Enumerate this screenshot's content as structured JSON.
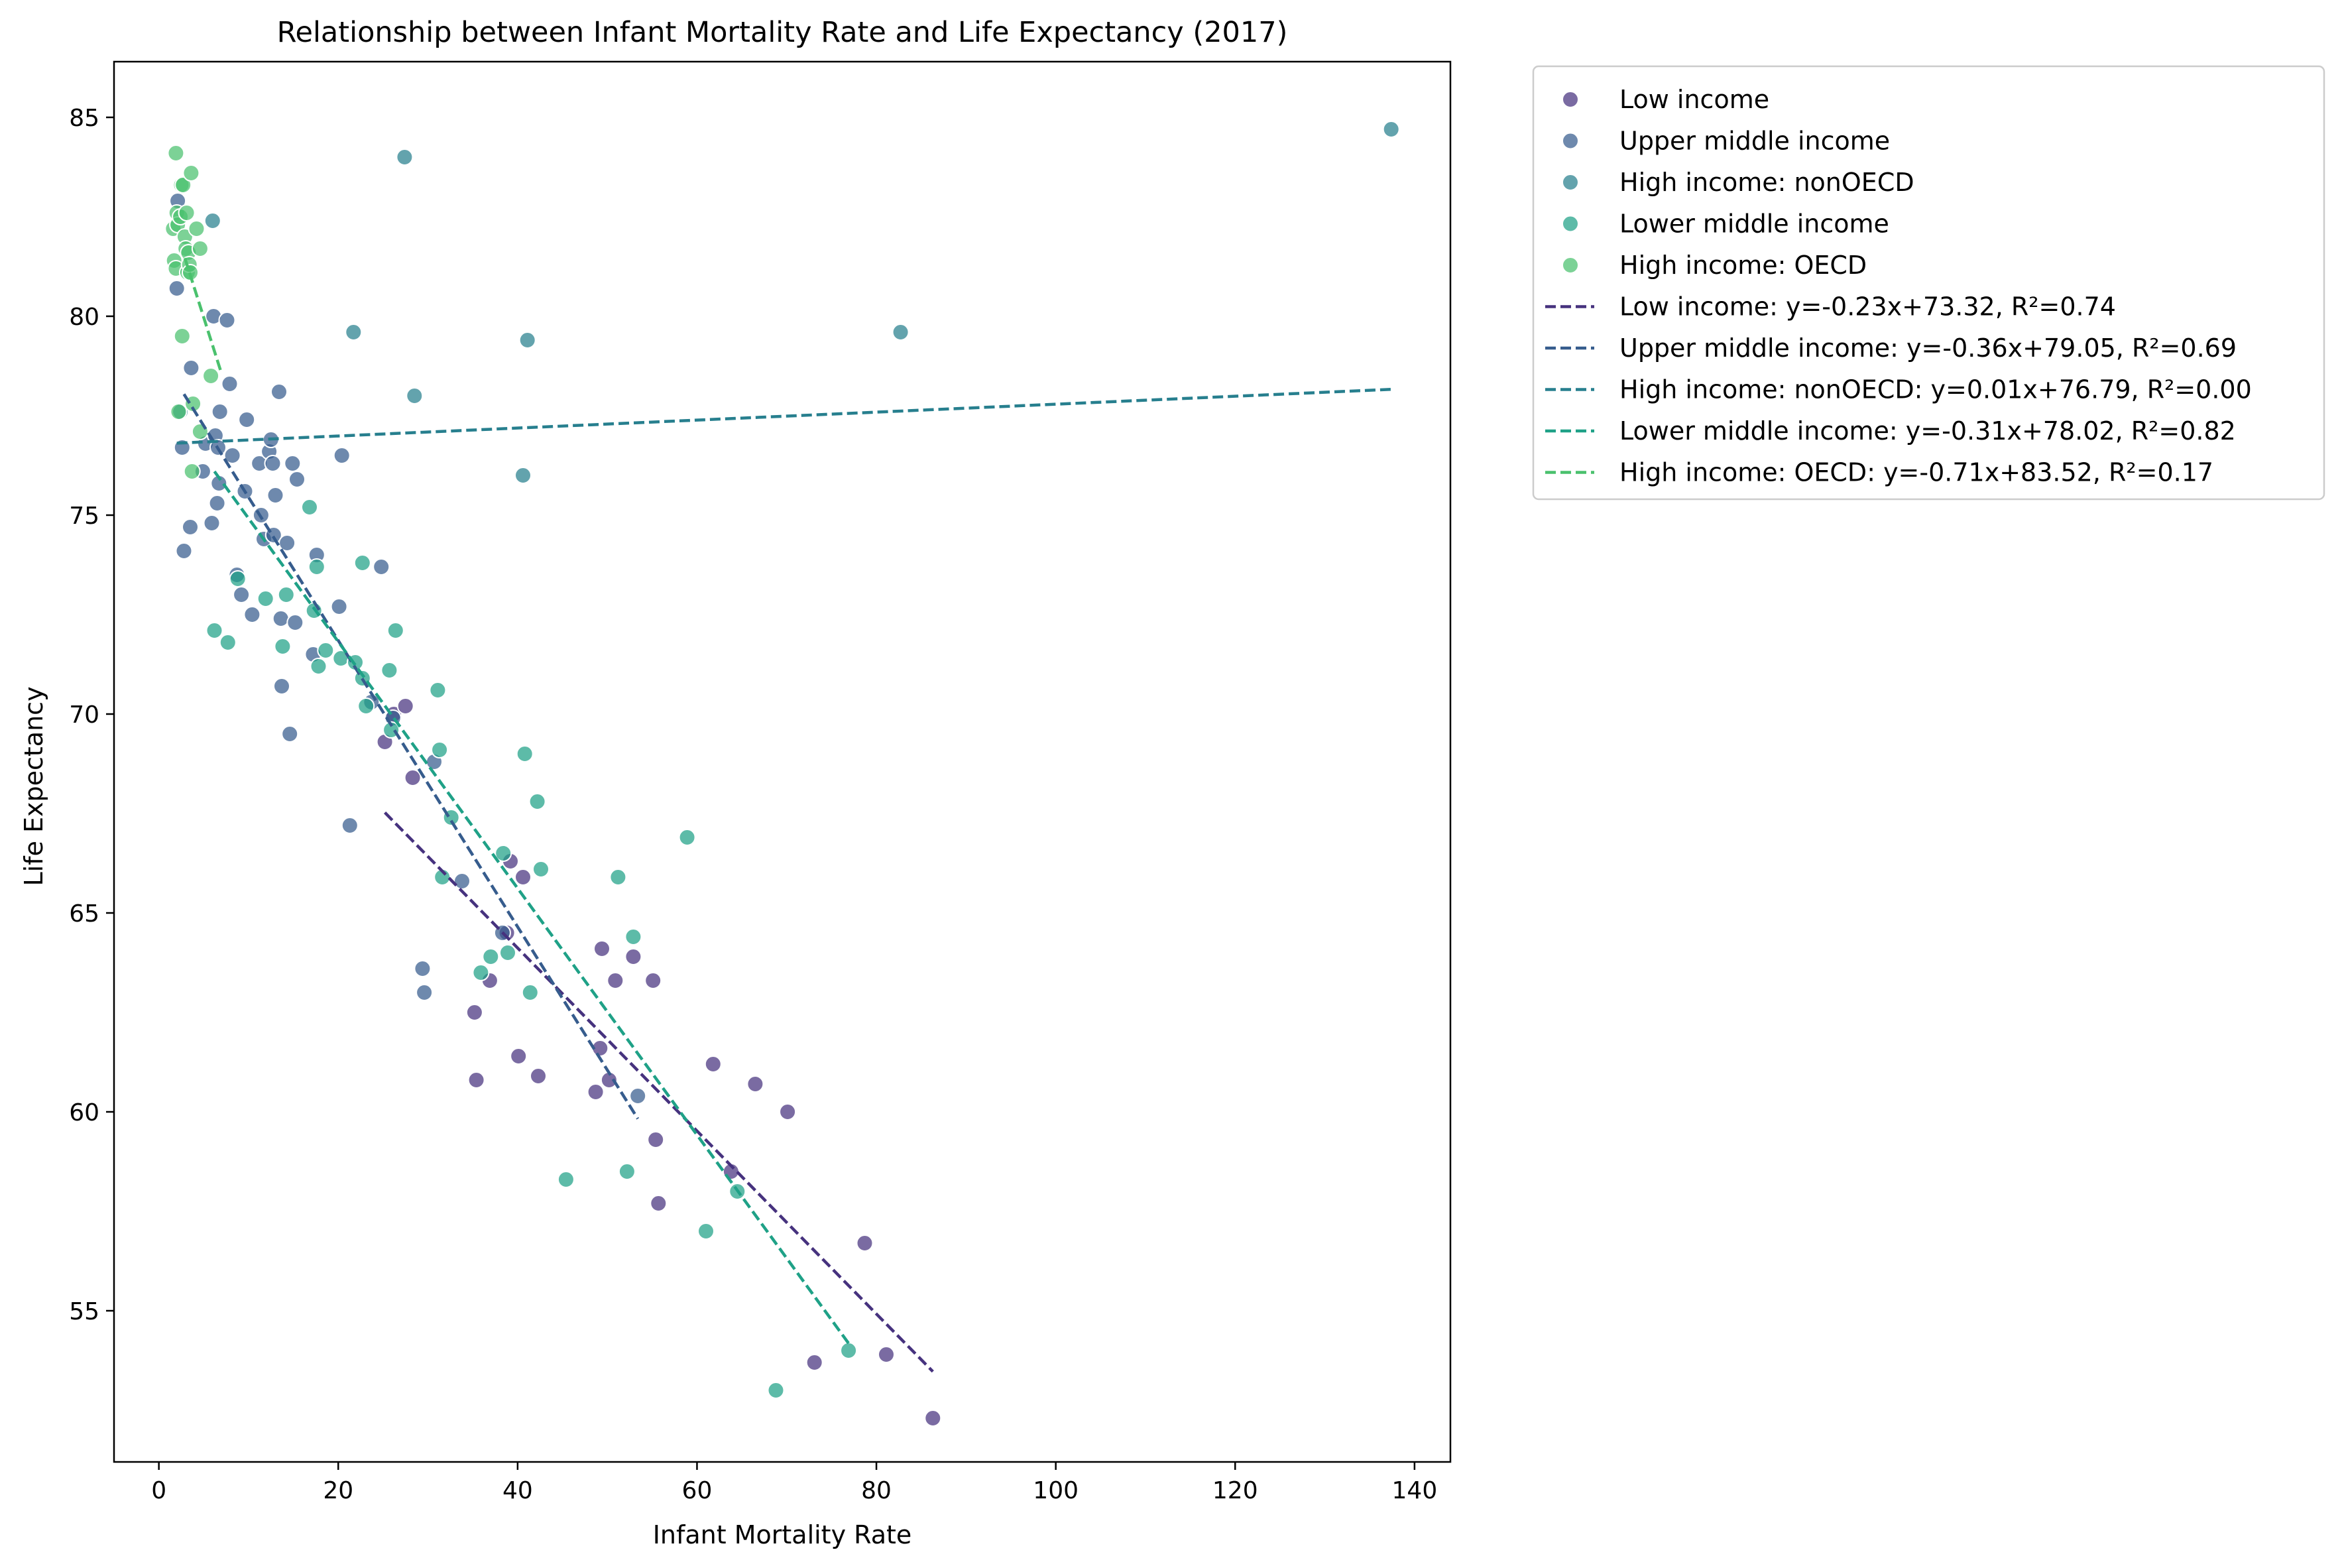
{
  "chart_data": {
    "type": "scatter",
    "title": "Relationship between Infant Mortality Rate and Life Expectancy (2017)",
    "xlabel": "Infant Mortality Rate",
    "ylabel": "Life Expectancy",
    "xlim": [
      -5,
      144
    ],
    "ylim": [
      51.2,
      86.4
    ],
    "xticks": [
      0,
      20,
      40,
      60,
      80,
      100,
      120,
      140
    ],
    "yticks": [
      55,
      60,
      65,
      70,
      75,
      80,
      85
    ],
    "grid": false,
    "legend_position": "outside-top-right",
    "series": [
      {
        "name": "Low income",
        "color": "#46327e",
        "points": [
          [
            25.2,
            69.3
          ],
          [
            26.2,
            70.0
          ],
          [
            27.5,
            70.2
          ],
          [
            28.3,
            68.4
          ],
          [
            35.2,
            62.5
          ],
          [
            35.4,
            60.8
          ],
          [
            36.9,
            63.3
          ],
          [
            38.8,
            64.5
          ],
          [
            39.2,
            66.3
          ],
          [
            40.1,
            61.4
          ],
          [
            40.6,
            65.9
          ],
          [
            42.3,
            60.9
          ],
          [
            48.7,
            60.5
          ],
          [
            49.2,
            61.6
          ],
          [
            49.4,
            64.1
          ],
          [
            50.2,
            60.8
          ],
          [
            50.9,
            63.3
          ],
          [
            52.9,
            63.9
          ],
          [
            55.1,
            63.3
          ],
          [
            55.4,
            59.3
          ],
          [
            55.7,
            57.7
          ],
          [
            61.8,
            61.2
          ],
          [
            63.8,
            58.5
          ],
          [
            66.5,
            60.7
          ],
          [
            70.1,
            60.0
          ],
          [
            73.1,
            53.7
          ],
          [
            78.7,
            56.7
          ],
          [
            81.1,
            53.9
          ],
          [
            86.3,
            52.3
          ]
        ],
        "trend": {
          "label": "Low income: y=-0.23x+73.32, R²=0.74",
          "x_range": [
            25.2,
            86.3
          ],
          "slope": -0.23,
          "intercept": 73.32
        }
      },
      {
        "name": "Upper middle income",
        "color": "#365c8d",
        "points": [
          [
            2.1,
            82.9
          ],
          [
            2.0,
            80.7
          ],
          [
            2.6,
            76.7
          ],
          [
            2.8,
            74.1
          ],
          [
            3.5,
            74.7
          ],
          [
            3.6,
            78.7
          ],
          [
            4.9,
            76.1
          ],
          [
            5.2,
            76.8
          ],
          [
            5.9,
            74.8
          ],
          [
            6.1,
            80.0
          ],
          [
            6.3,
            77.0
          ],
          [
            6.5,
            75.3
          ],
          [
            6.6,
            76.7
          ],
          [
            6.8,
            77.6
          ],
          [
            6.7,
            75.8
          ],
          [
            7.6,
            79.9
          ],
          [
            7.9,
            78.3
          ],
          [
            8.2,
            76.5
          ],
          [
            8.7,
            73.5
          ],
          [
            9.2,
            73.0
          ],
          [
            9.6,
            75.6
          ],
          [
            9.8,
            77.4
          ],
          [
            10.4,
            72.5
          ],
          [
            11.2,
            76.3
          ],
          [
            11.4,
            75.0
          ],
          [
            11.7,
            74.4
          ],
          [
            12.3,
            76.6
          ],
          [
            12.5,
            76.9
          ],
          [
            12.7,
            76.3
          ],
          [
            12.8,
            74.5
          ],
          [
            13.0,
            75.5
          ],
          [
            13.4,
            78.1
          ],
          [
            13.6,
            72.4
          ],
          [
            13.7,
            70.7
          ],
          [
            14.3,
            74.3
          ],
          [
            14.6,
            69.5
          ],
          [
            14.9,
            76.3
          ],
          [
            15.2,
            72.3
          ],
          [
            15.4,
            75.9
          ],
          [
            17.2,
            71.5
          ],
          [
            17.6,
            74.0
          ],
          [
            20.1,
            72.7
          ],
          [
            20.4,
            76.5
          ],
          [
            21.3,
            67.2
          ],
          [
            23.7,
            70.3
          ],
          [
            24.8,
            73.7
          ],
          [
            26.1,
            69.9
          ],
          [
            29.4,
            63.6
          ],
          [
            29.6,
            63.0
          ],
          [
            30.7,
            68.8
          ],
          [
            33.8,
            65.8
          ],
          [
            38.3,
            64.5
          ],
          [
            53.4,
            60.4
          ]
        ],
        "trend": {
          "label": "Upper middle income: y=-0.36x+79.05, R²=0.69",
          "x_range": [
            2.8,
            53.4
          ],
          "slope": -0.36,
          "intercept": 79.05
        }
      },
      {
        "name": "High income: nonOECD",
        "color": "#277f8e",
        "points": [
          [
            2.4,
            77.6
          ],
          [
            6.0,
            82.4
          ],
          [
            21.7,
            79.6
          ],
          [
            27.4,
            84.0
          ],
          [
            28.5,
            78.0
          ],
          [
            40.6,
            76.0
          ],
          [
            41.1,
            79.4
          ],
          [
            82.7,
            79.6
          ],
          [
            137.4,
            84.7
          ]
        ],
        "trend": {
          "label": "High income: nonOECD: y=0.01x+76.79, R²=0.00",
          "x_range": [
            2.0,
            137.4
          ],
          "slope": 0.01,
          "intercept": 76.79
        }
      },
      {
        "name": "Lower middle income",
        "color": "#1fa187",
        "points": [
          [
            6.2,
            72.1
          ],
          [
            7.7,
            71.8
          ],
          [
            8.8,
            73.4
          ],
          [
            11.9,
            72.9
          ],
          [
            13.8,
            71.7
          ],
          [
            14.2,
            73.0
          ],
          [
            16.8,
            75.2
          ],
          [
            17.3,
            72.6
          ],
          [
            17.6,
            73.7
          ],
          [
            17.8,
            71.2
          ],
          [
            18.6,
            71.6
          ],
          [
            20.3,
            71.4
          ],
          [
            21.9,
            71.3
          ],
          [
            22.7,
            73.8
          ],
          [
            22.7,
            70.9
          ],
          [
            23.1,
            70.2
          ],
          [
            25.7,
            71.1
          ],
          [
            25.9,
            69.6
          ],
          [
            26.4,
            72.1
          ],
          [
            31.1,
            70.6
          ],
          [
            31.3,
            69.1
          ],
          [
            31.6,
            65.9
          ],
          [
            32.6,
            67.4
          ],
          [
            35.9,
            63.5
          ],
          [
            37.0,
            63.9
          ],
          [
            38.4,
            66.5
          ],
          [
            38.9,
            64.0
          ],
          [
            40.8,
            69.0
          ],
          [
            41.4,
            63.0
          ],
          [
            42.2,
            67.8
          ],
          [
            42.6,
            66.1
          ],
          [
            45.4,
            58.3
          ],
          [
            51.2,
            65.9
          ],
          [
            52.2,
            58.5
          ],
          [
            52.9,
            64.4
          ],
          [
            58.9,
            66.9
          ],
          [
            61.0,
            57.0
          ],
          [
            64.5,
            58.0
          ],
          [
            68.8,
            53.0
          ],
          [
            76.9,
            54.0
          ]
        ],
        "trend": {
          "label": "Lower middle income: y=-0.31x+78.02, R²=0.82",
          "x_range": [
            6.2,
            76.9
          ],
          "slope": -0.31,
          "intercept": 78.02
        }
      },
      {
        "name": "High income: OECD",
        "color": "#4ac16d",
        "points": [
          [
            1.6,
            82.2
          ],
          [
            1.7,
            81.4
          ],
          [
            1.9,
            84.1
          ],
          [
            1.9,
            81.2
          ],
          [
            2.0,
            82.6
          ],
          [
            2.1,
            82.3
          ],
          [
            2.2,
            77.6
          ],
          [
            2.4,
            82.5
          ],
          [
            2.5,
            83.3
          ],
          [
            2.6,
            79.5
          ],
          [
            2.7,
            83.3
          ],
          [
            2.9,
            82.0
          ],
          [
            3.0,
            81.7
          ],
          [
            3.1,
            82.6
          ],
          [
            3.2,
            81.1
          ],
          [
            3.3,
            81.6
          ],
          [
            3.4,
            81.3
          ],
          [
            3.5,
            81.1
          ],
          [
            3.6,
            83.6
          ],
          [
            3.7,
            76.1
          ],
          [
            3.8,
            77.8
          ],
          [
            4.2,
            82.2
          ],
          [
            4.6,
            81.7
          ],
          [
            4.6,
            77.1
          ],
          [
            5.8,
            78.5
          ]
        ],
        "trend": {
          "label": "High income: OECD: y=-0.71x+83.52, R²=0.17",
          "x_range": [
            2.9,
            6.9
          ],
          "slope": -0.71,
          "intercept": 83.52
        }
      }
    ]
  }
}
